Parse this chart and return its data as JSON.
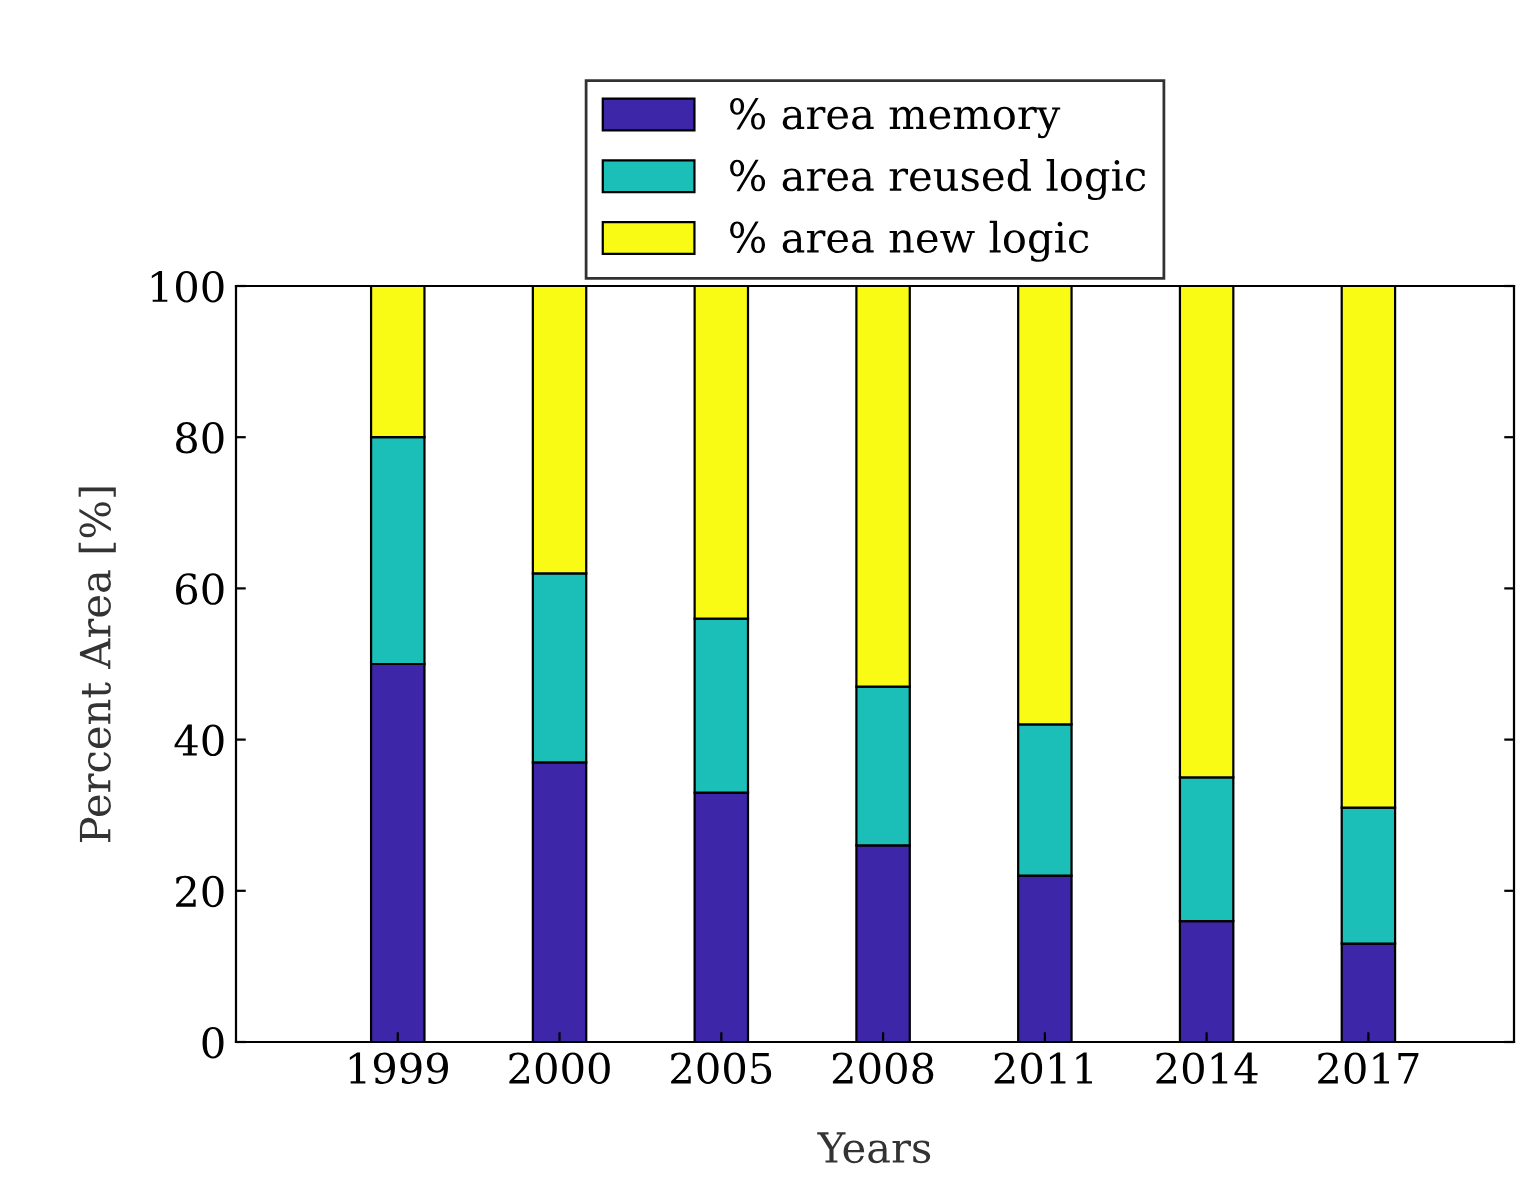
{
  "chart_data": {
    "type": "bar",
    "stacked": true,
    "xlabel": "Years",
    "ylabel": "Percent Area [%]",
    "categories": [
      "1999",
      "2000",
      "2005",
      "2008",
      "2011",
      "2014",
      "2017"
    ],
    "series": [
      {
        "name": "% area memory",
        "color": "#3e26a8",
        "values": [
          50,
          37,
          33,
          26,
          22,
          16,
          13
        ]
      },
      {
        "name": "% area reused logic",
        "color": "#1bbfb7",
        "values": [
          30,
          25,
          23,
          21,
          20,
          19,
          18
        ]
      },
      {
        "name": "% area new logic",
        "color": "#f9fb15",
        "values": [
          20,
          38,
          44,
          53,
          58,
          65,
          69
        ]
      }
    ],
    "ylim": [
      0,
      100
    ],
    "yticks": [
      0,
      20,
      40,
      60,
      80,
      100
    ],
    "grid": false,
    "legend": "top"
  }
}
